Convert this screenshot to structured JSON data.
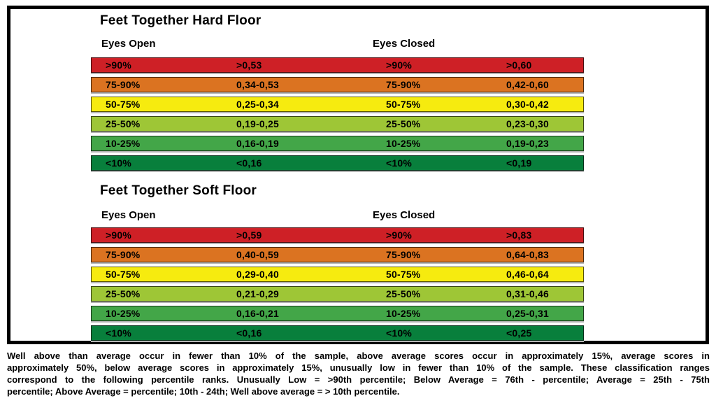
{
  "page": {
    "background": "#ffffff",
    "frame_border_color": "#000000",
    "text_color": "#000000"
  },
  "tables": [
    {
      "title": "Feet Together Hard Floor",
      "col_headers": [
        "Eyes Open",
        "Eyes Closed"
      ],
      "rows": [
        {
          "band": "well-above-average",
          "color": "#ce2026",
          "cells": [
            ">90%",
            ">0,53",
            ">90%",
            ">0,60"
          ]
        },
        {
          "band": "above-average",
          "color": "#db7321",
          "cells": [
            "75-90%",
            "0,34-0,53",
            "75-90%",
            "0,42-0,60"
          ]
        },
        {
          "band": "average",
          "color": "#f6eb0f",
          "cells": [
            "50-75%",
            "0,25-0,34",
            "50-75%",
            "0,30-0,42"
          ]
        },
        {
          "band": "below-average",
          "color": "#9ec636",
          "cells": [
            "25-50%",
            "0,19-0,25",
            "25-50%",
            "0,23-0,30"
          ]
        },
        {
          "band": "low",
          "color": "#43a648",
          "cells": [
            "10-25%",
            "0,16-0,19",
            "10-25%",
            "0,19-0,23"
          ]
        },
        {
          "band": "unusually-low",
          "color": "#087f3c",
          "cells": [
            "<10%",
            "<0,16",
            "<10%",
            "<0,19"
          ]
        }
      ]
    },
    {
      "title": "Feet Together Soft Floor",
      "col_headers": [
        "Eyes Open",
        "Eyes Closed"
      ],
      "rows": [
        {
          "band": "well-above-average",
          "color": "#ce2026",
          "cells": [
            ">90%",
            ">0,59",
            ">90%",
            ">0,83"
          ]
        },
        {
          "band": "above-average",
          "color": "#db7321",
          "cells": [
            "75-90%",
            "0,40-0,59",
            "75-90%",
            "0,64-0,83"
          ]
        },
        {
          "band": "average",
          "color": "#f6eb0f",
          "cells": [
            "50-75%",
            "0,29-0,40",
            "50-75%",
            "0,46-0,64"
          ]
        },
        {
          "band": "below-average",
          "color": "#9ec636",
          "cells": [
            "25-50%",
            "0,21-0,29",
            "25-50%",
            "0,31-0,46"
          ]
        },
        {
          "band": "low",
          "color": "#43a648",
          "cells": [
            "10-25%",
            "0,16-0,21",
            "10-25%",
            "0,25-0,31"
          ]
        },
        {
          "band": "unusually-low",
          "color": "#087f3c",
          "cells": [
            "<10%",
            "<0,16",
            "<10%",
            "<0,25"
          ]
        }
      ]
    }
  ],
  "footer": {
    "lines": [
      "Well above than average occur in fewer than 10% of the sample, above average scores occur in approximately 15%, average scores in",
      "approximately 50%, below average scores in approximately 15%, unusually low in fewer than 10% of the sample. These classification ranges",
      "correspond to the following percentile ranks. Unusually Low = >90th percentile; Below Average = 76th - percentile; Average = 25th - 75th",
      "percentile; Above Average = percentile; 10th - 24th; Well above average = > 10th percentile."
    ]
  }
}
